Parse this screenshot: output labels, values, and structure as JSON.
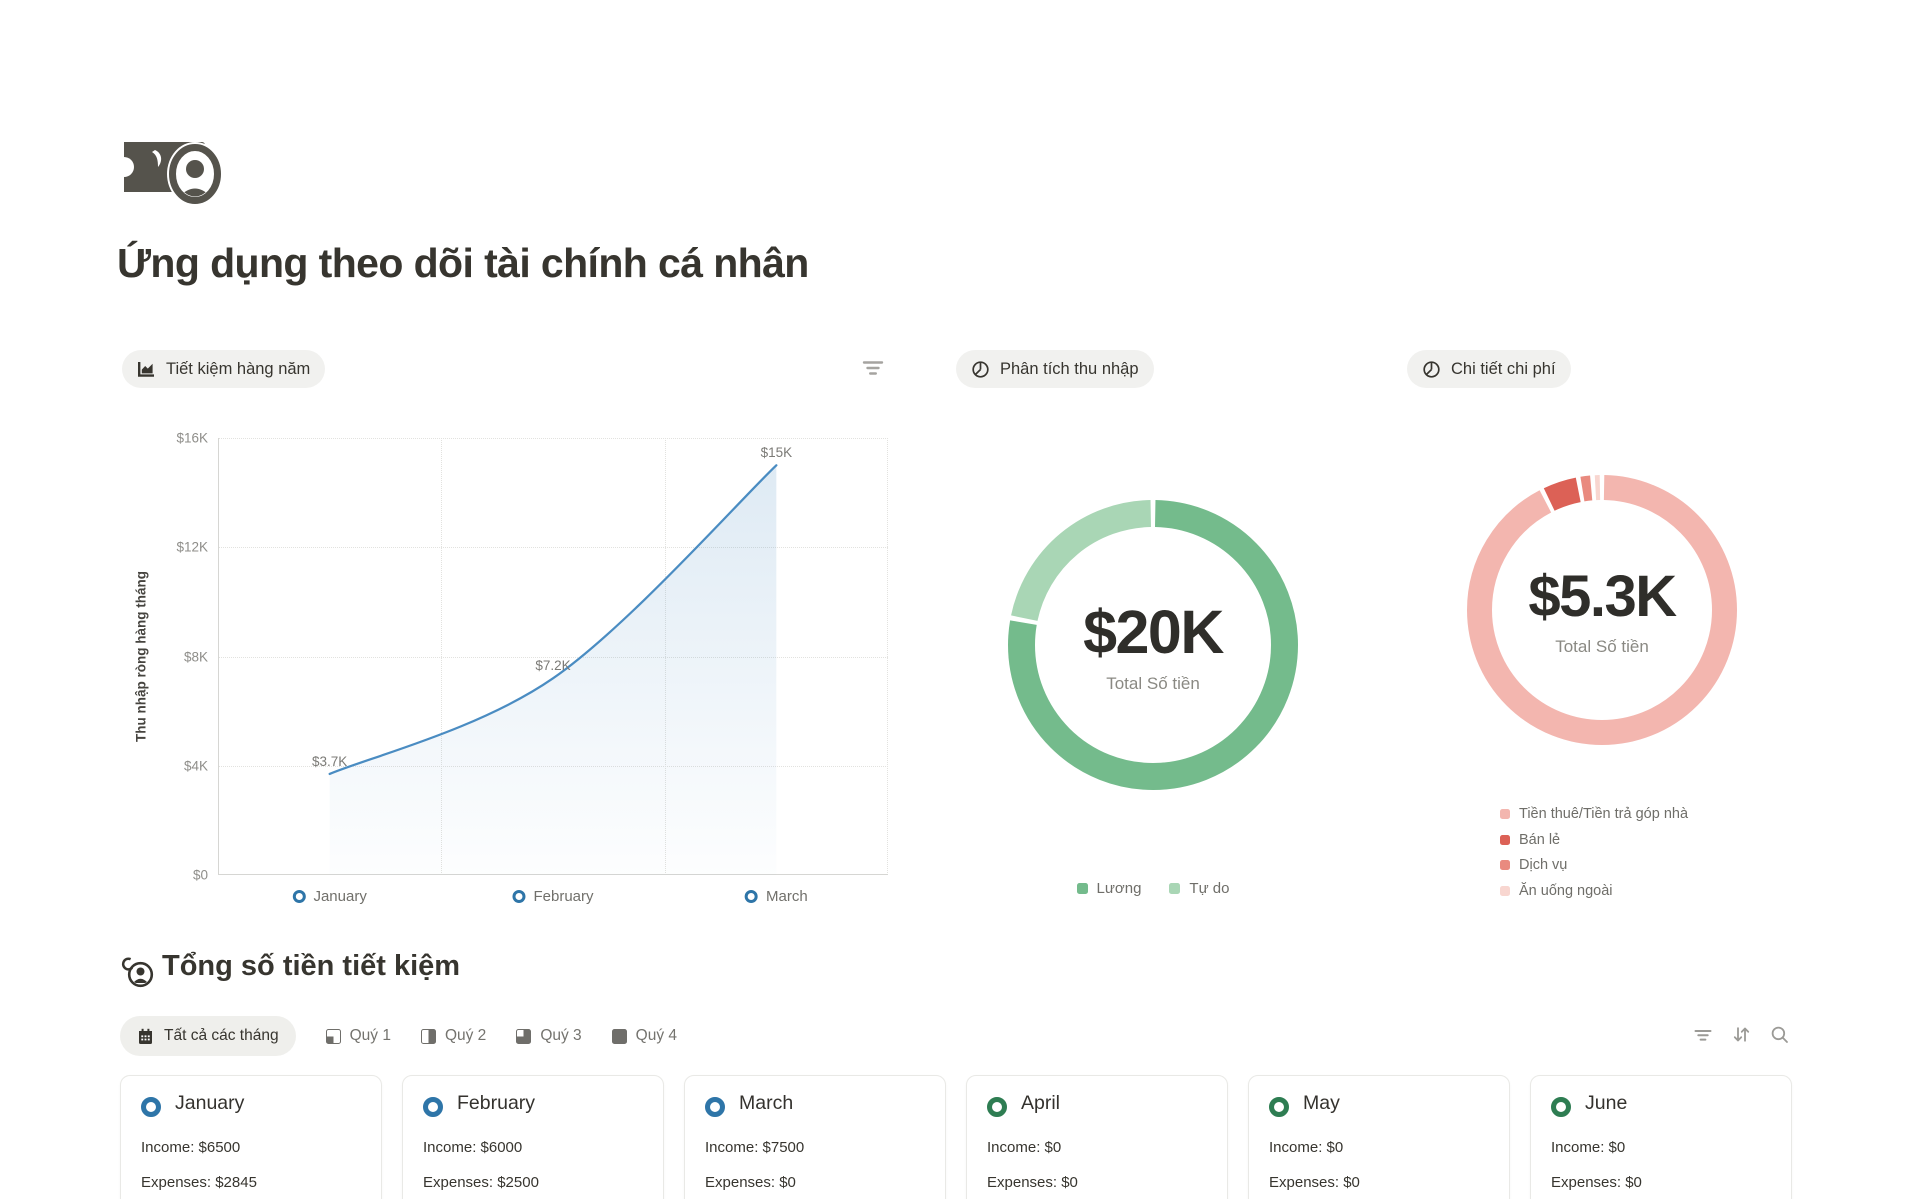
{
  "header": {
    "title": "Ứng dụng theo dõi tài chính cá nhân",
    "icon": "banknote-portrait-icon"
  },
  "chart_data": [
    {
      "type": "line",
      "badge": "Tiết kiệm hàng năm",
      "categories": [
        "January",
        "February",
        "March"
      ],
      "values": [
        3700,
        7200,
        15000
      ],
      "point_labels": [
        "$3.7K",
        "$7.2K",
        "$15K"
      ],
      "ylabel": "Thu nhập ròng hàng tháng",
      "yticks": [
        "$16K",
        "$12K",
        "$8K",
        "$4K",
        "$0"
      ],
      "ylim": [
        0,
        16000
      ],
      "color": "#4a8cc2",
      "marker_color": "#2e75a8",
      "grid": "dotted",
      "legend_position": "bottom"
    },
    {
      "type": "pie",
      "badge": "Phân tích thu nhập",
      "center_value": "$20K",
      "center_caption": "Total Số tiền",
      "legend": [
        "Lương",
        "Tự do"
      ],
      "values": [
        15600,
        4400
      ],
      "colors": [
        "#74bb8c",
        "#a9d6b5"
      ],
      "legend_position": "bottom"
    },
    {
      "type": "pie",
      "badge": "Chi tiết chi phí",
      "center_value": "$5.3K",
      "center_caption": "Total Số tiền",
      "legend": [
        "Tiền thuê/Tiền trả góp nhà",
        "Bán lẻ",
        "Dịch vụ",
        "Ăn uống ngoài"
      ],
      "values": [
        4900,
        240,
        90,
        60
      ],
      "colors": [
        "#f3b6af",
        "#dc6156",
        "#e98a7f",
        "#f8d6d0"
      ],
      "legend_position": "bottom-left"
    }
  ],
  "summary": {
    "heading": "Tổng số tiền tiết kiệm",
    "heading_icon": "coin-savings-icon",
    "tabs": [
      {
        "label": "Tất cả các tháng",
        "icon": "calendar-icon",
        "active": true
      },
      {
        "label": "Quý 1",
        "icon": "quarter-1-icon",
        "active": false
      },
      {
        "label": "Quý 2",
        "icon": "quarter-2-icon",
        "active": false
      },
      {
        "label": "Quý 3",
        "icon": "quarter-3-icon",
        "active": false
      },
      {
        "label": "Quý 4",
        "icon": "quarter-4-icon",
        "active": false
      }
    ],
    "toolbar_icons": [
      "filter-icon",
      "sort-icon",
      "search-icon"
    ],
    "cards": [
      {
        "month": "January",
        "income": "Income: $6500",
        "expenses": "Expenses: $2845",
        "dot": "#2e75a8"
      },
      {
        "month": "February",
        "income": "Income: $6000",
        "expenses": "Expenses: $2500",
        "dot": "#2e75a8"
      },
      {
        "month": "March",
        "income": "Income: $7500",
        "expenses": "Expenses: $0",
        "dot": "#2e75a8"
      },
      {
        "month": "April",
        "income": "Income: $0",
        "expenses": "Expenses: $0",
        "dot": "#2e7d52"
      },
      {
        "month": "May",
        "income": "Income: $0",
        "expenses": "Expenses: $0",
        "dot": "#2e7d52"
      },
      {
        "month": "June",
        "income": "Income: $0",
        "expenses": "Expenses: $0",
        "dot": "#2e7d52"
      }
    ]
  }
}
